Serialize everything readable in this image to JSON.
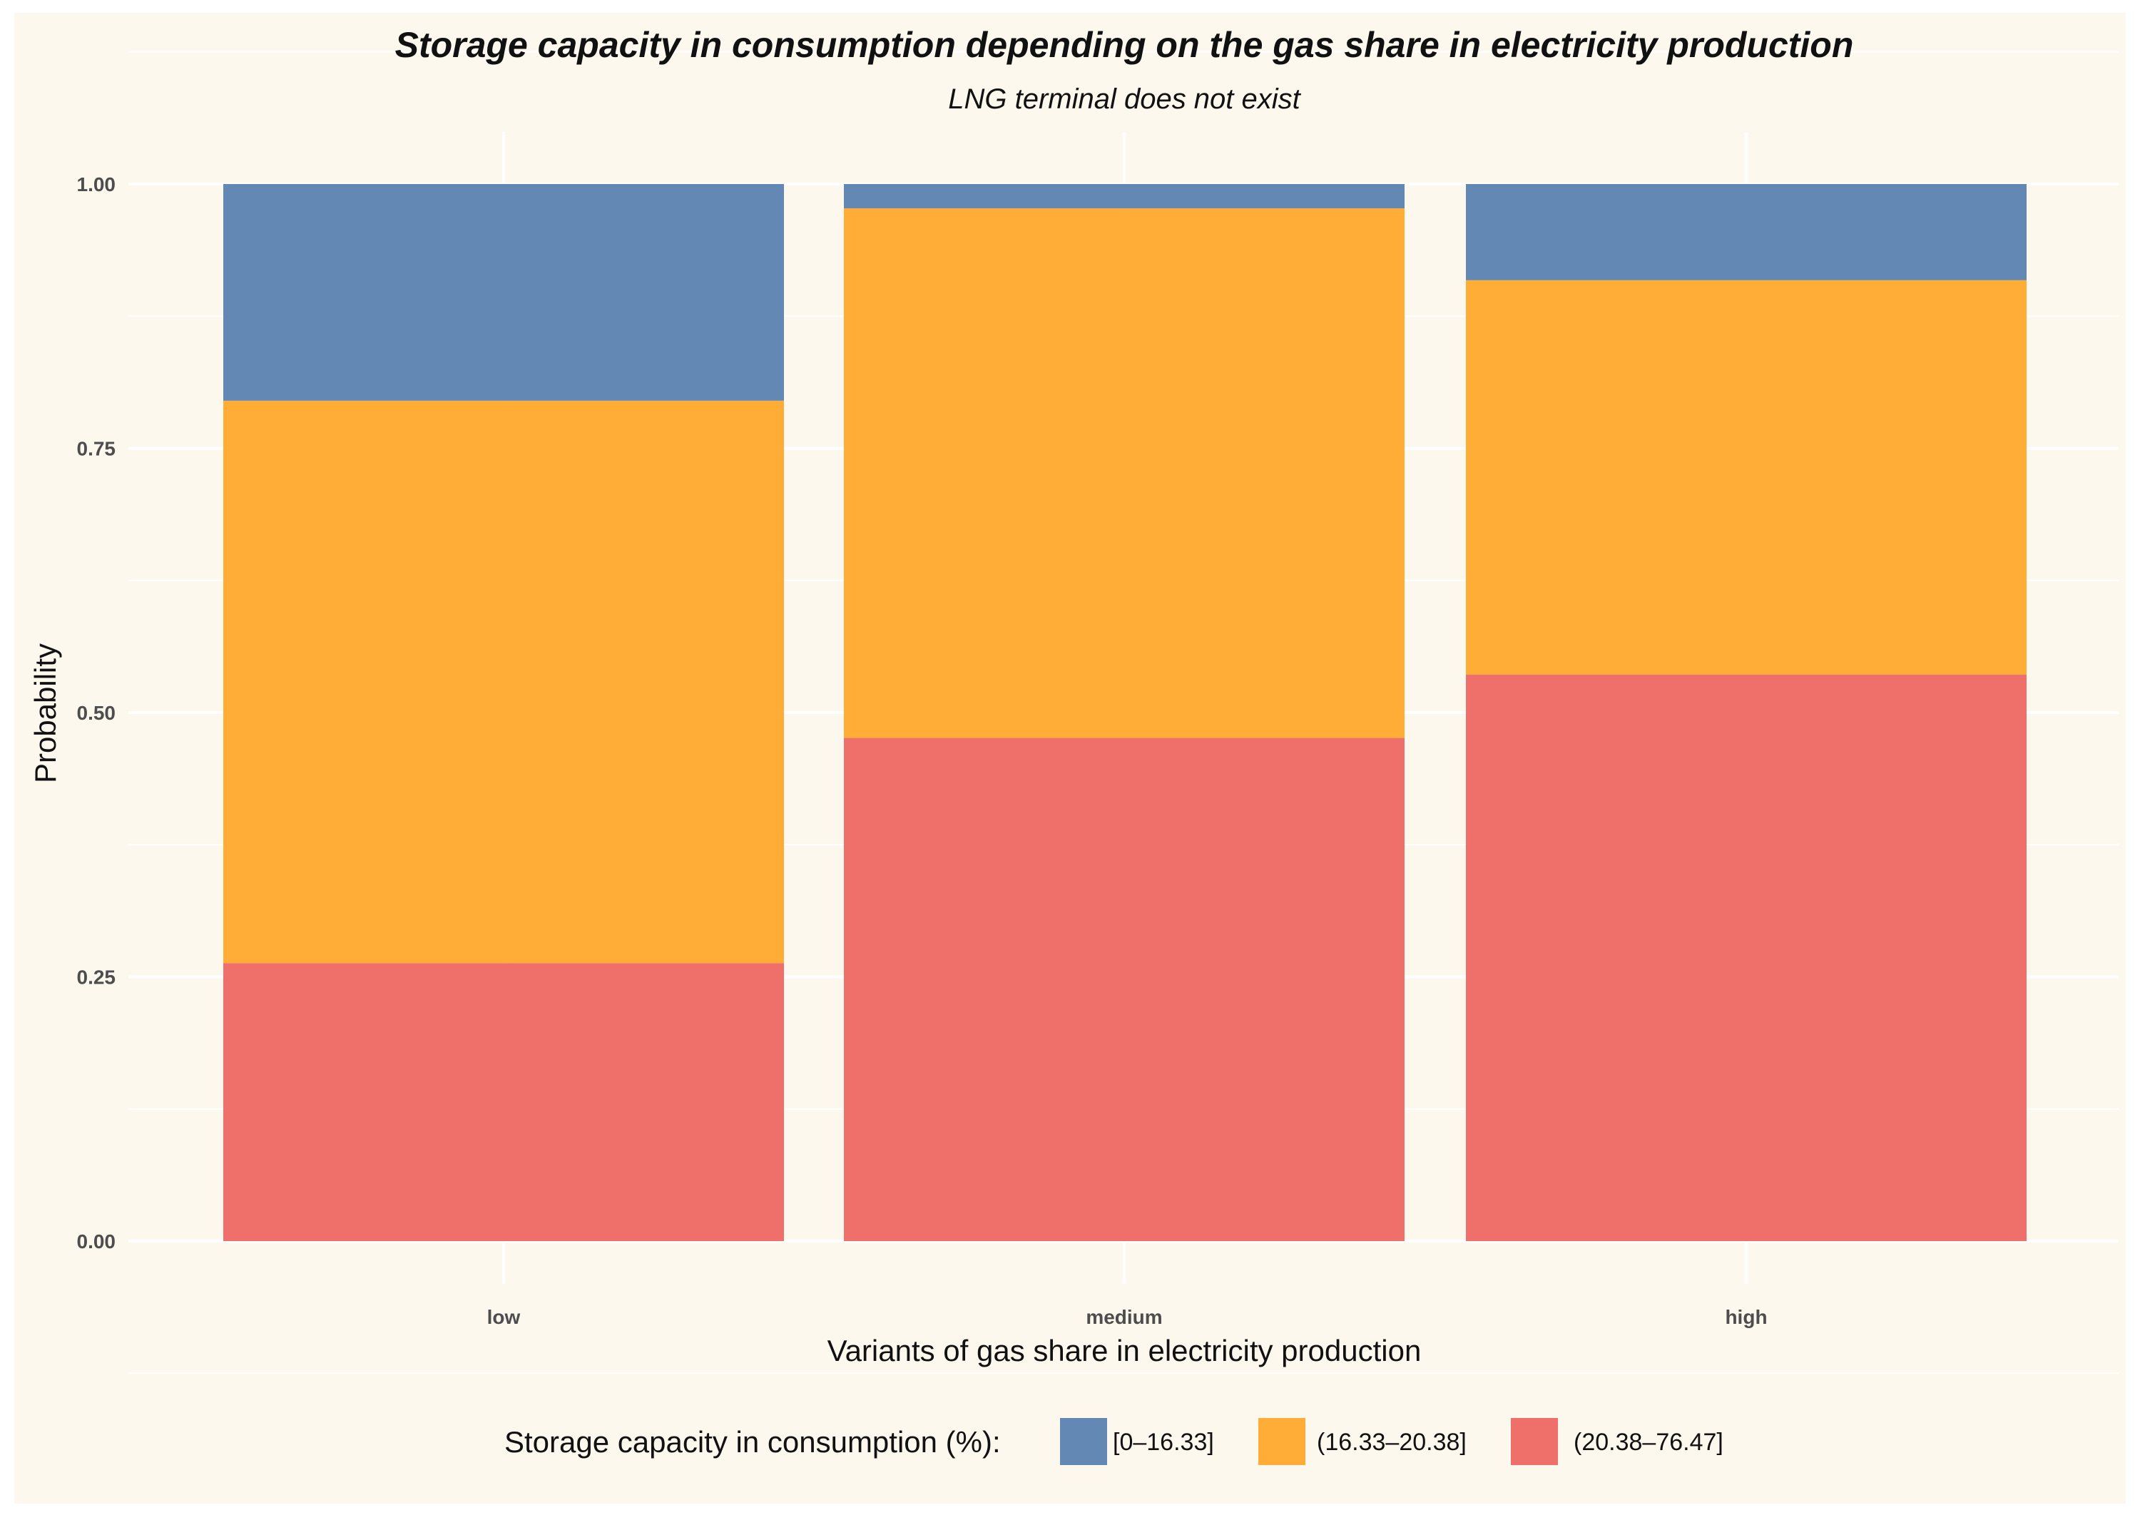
{
  "chart_data": {
    "type": "bar",
    "stacked": true,
    "title": "Storage capacity in consumption depending on the gas share in electricity production",
    "subtitle": "LNG terminal does not exist",
    "xlabel": "Variants of gas share in electricity production",
    "ylabel": "Probability",
    "ylim": [
      0,
      1
    ],
    "yticks": [
      "0.00",
      "0.25",
      "0.50",
      "0.75",
      "1.00"
    ],
    "categories": [
      "low",
      "medium",
      "high"
    ],
    "series": [
      {
        "name": "(20.38–76.47]",
        "color": "#ef6f6a",
        "values": [
          0.263,
          0.476,
          0.536
        ]
      },
      {
        "name": "(16.33–20.38]",
        "color": "#ffad36",
        "values": [
          0.532,
          0.501,
          0.373
        ]
      },
      {
        "name": "[0–16.33]",
        "color": "#6388b4",
        "values": [
          0.205,
          0.023,
          0.091
        ]
      }
    ],
    "legend": {
      "title": "Storage capacity in consumption (%):",
      "position": "bottom",
      "order": [
        "[0–16.33]",
        "(16.33–20.38]",
        "(20.38–76.47]"
      ]
    },
    "grid": true
  }
}
